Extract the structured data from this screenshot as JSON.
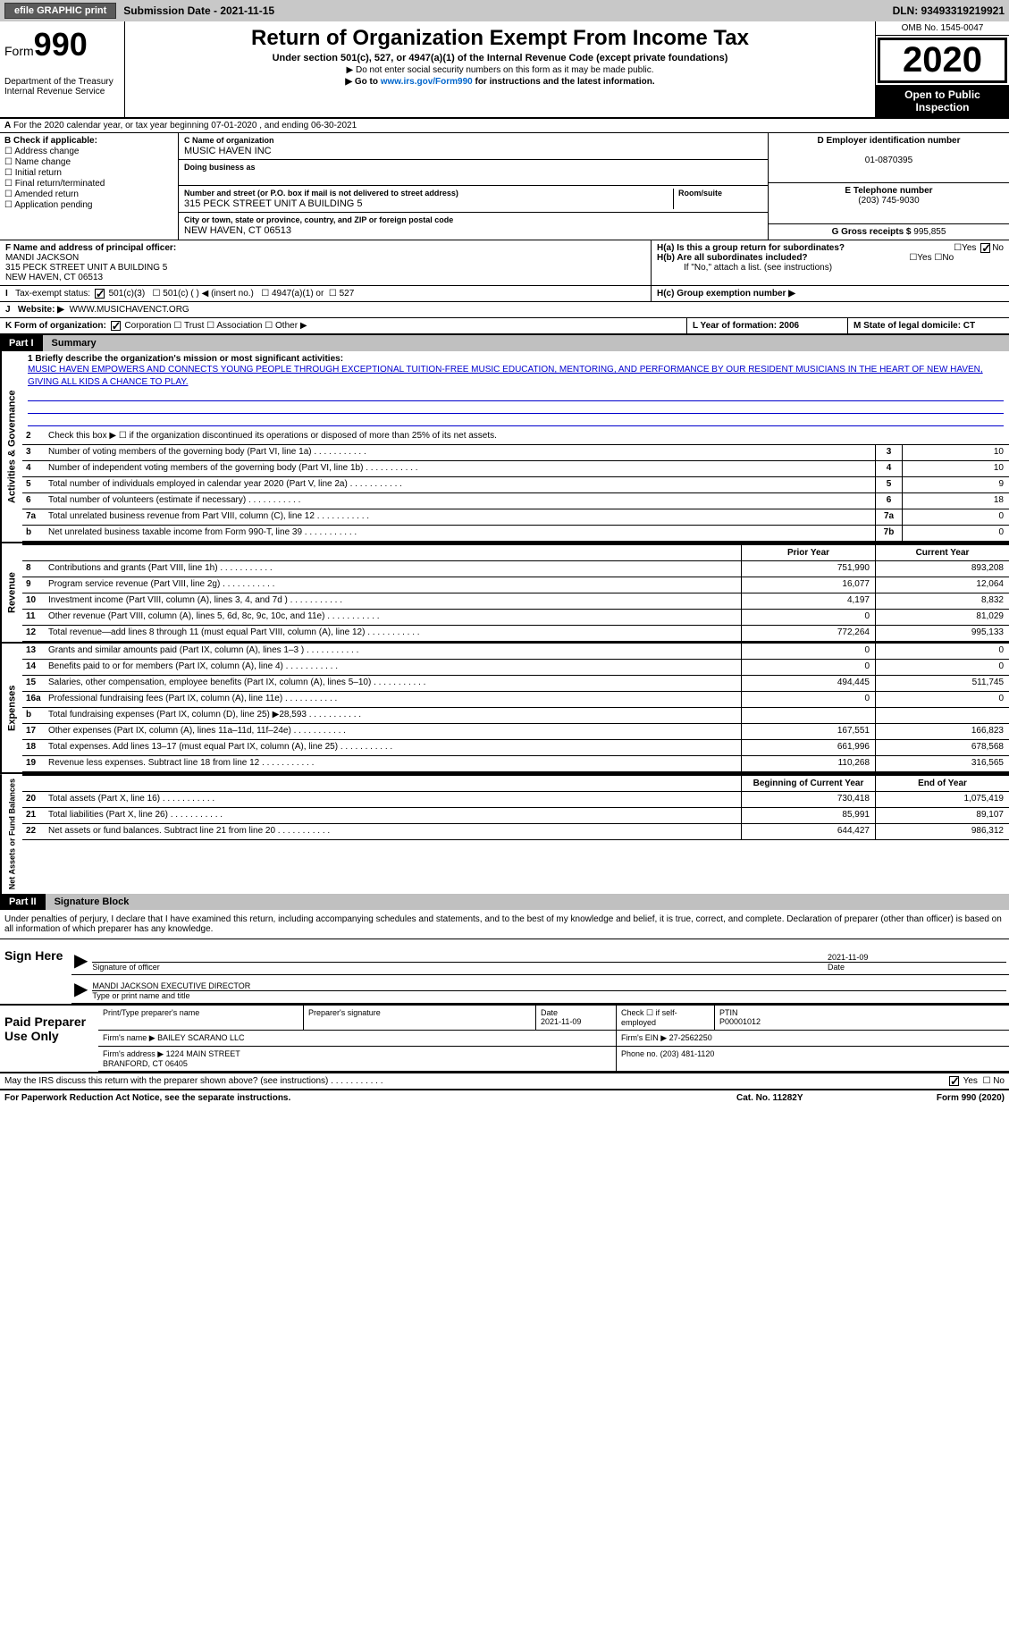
{
  "topbar": {
    "efile": "efile GRAPHIC print",
    "submission": "Submission Date - 2021-11-15",
    "dln": "DLN: 93493319219921"
  },
  "header": {
    "form": "Form",
    "num": "990",
    "dept": "Department of the Treasury\nInternal Revenue Service",
    "title": "Return of Organization Exempt From Income Tax",
    "sub1": "Under section 501(c), 527, or 4947(a)(1) of the Internal Revenue Code (except private foundations)",
    "sub2a": "▶ Do not enter social security numbers on this form as it may be made public.",
    "sub2b": "▶ Go to ",
    "link": "www.irs.gov/Form990",
    "sub2c": " for instructions and the latest information.",
    "omb": "OMB No. 1545-0047",
    "year": "2020",
    "inspect": "Open to Public Inspection"
  },
  "row_a": "For the 2020 calendar year, or tax year beginning 07-01-2020    , and ending 06-30-2021",
  "box_b": {
    "title": "B Check if applicable:",
    "items": [
      "Address change",
      "Name change",
      "Initial return",
      "Final return/terminated",
      "Amended return",
      "Application pending"
    ]
  },
  "box_c": {
    "name_label": "C Name of organization",
    "name": "MUSIC HAVEN INC",
    "dba_label": "Doing business as",
    "dba": "",
    "addr_label": "Number and street (or P.O. box if mail is not delivered to street address)",
    "addr": "315 PECK STREET UNIT A BUILDING 5",
    "room_label": "Room/suite",
    "city_label": "City or town, state or province, country, and ZIP or foreign postal code",
    "city": "NEW HAVEN, CT  06513"
  },
  "box_d": {
    "ein_label": "D Employer identification number",
    "ein": "01-0870395",
    "phone_label": "E Telephone number",
    "phone": "(203) 745-9030",
    "gross_label": "G Gross receipts $",
    "gross": "995,855"
  },
  "row_f": {
    "label": "F Name and address of principal officer:",
    "name": "MANDI JACKSON",
    "addr": "315 PECK STREET UNIT A BUILDING 5\nNEW HAVEN, CT  06513",
    "ha": "H(a)  Is this a group return for subordinates?",
    "hb": "H(b)  Are all subordinates included?",
    "hb_note": "If \"No,\" attach a list. (see instructions)",
    "hc": "H(c)  Group exemption number ▶"
  },
  "row_i": "Tax-exempt status:",
  "row_i_opts": [
    "501(c)(3)",
    "501(c) (  ) ◀ (insert no.)",
    "4947(a)(1) or",
    "527"
  ],
  "row_j": {
    "label": "Website: ▶",
    "val": "WWW.MUSICHAVENCT.ORG"
  },
  "row_k": {
    "label": "K Form of organization:",
    "opts": [
      "Corporation",
      "Trust",
      "Association",
      "Other ▶"
    ]
  },
  "row_l": "L Year of formation: 2006",
  "row_m": "M State of legal domicile: CT",
  "part1": {
    "num": "Part I",
    "title": "Summary"
  },
  "mission": {
    "q": "1   Briefly describe the organization's mission or most significant activities:",
    "txt": "MUSIC HAVEN EMPOWERS AND CONNECTS YOUNG PEOPLE THROUGH EXCEPTIONAL TUITION-FREE MUSIC EDUCATION, MENTORING, AND PERFORMANCE BY OUR RESIDENT MUSICIANS IN THE HEART OF NEW HAVEN, GIVING ALL KIDS A CHANCE TO PLAY."
  },
  "line2": "Check this box ▶ ☐  if the organization discontinued its operations or disposed of more than 25% of its net assets.",
  "gov_lines": [
    {
      "n": "3",
      "d": "Number of voting members of the governing body (Part VI, line 1a)",
      "b": "3",
      "v": "10"
    },
    {
      "n": "4",
      "d": "Number of independent voting members of the governing body (Part VI, line 1b)",
      "b": "4",
      "v": "10"
    },
    {
      "n": "5",
      "d": "Total number of individuals employed in calendar year 2020 (Part V, line 2a)",
      "b": "5",
      "v": "9"
    },
    {
      "n": "6",
      "d": "Total number of volunteers (estimate if necessary)",
      "b": "6",
      "v": "18"
    },
    {
      "n": "7a",
      "d": "Total unrelated business revenue from Part VIII, column (C), line 12",
      "b": "7a",
      "v": "0"
    },
    {
      "n": "b",
      "d": "Net unrelated business taxable income from Form 990-T, line 39",
      "b": "7b",
      "v": "0"
    }
  ],
  "col_hdr": {
    "py": "Prior Year",
    "cy": "Current Year"
  },
  "rev_lines": [
    {
      "n": "8",
      "d": "Contributions and grants (Part VIII, line 1h)",
      "py": "751,990",
      "cy": "893,208"
    },
    {
      "n": "9",
      "d": "Program service revenue (Part VIII, line 2g)",
      "py": "16,077",
      "cy": "12,064"
    },
    {
      "n": "10",
      "d": "Investment income (Part VIII, column (A), lines 3, 4, and 7d )",
      "py": "4,197",
      "cy": "8,832"
    },
    {
      "n": "11",
      "d": "Other revenue (Part VIII, column (A), lines 5, 6d, 8c, 9c, 10c, and 11e)",
      "py": "0",
      "cy": "81,029"
    },
    {
      "n": "12",
      "d": "Total revenue—add lines 8 through 11 (must equal Part VIII, column (A), line 12)",
      "py": "772,264",
      "cy": "995,133"
    }
  ],
  "exp_lines": [
    {
      "n": "13",
      "d": "Grants and similar amounts paid (Part IX, column (A), lines 1–3 )",
      "py": "0",
      "cy": "0"
    },
    {
      "n": "14",
      "d": "Benefits paid to or for members (Part IX, column (A), line 4)",
      "py": "0",
      "cy": "0"
    },
    {
      "n": "15",
      "d": "Salaries, other compensation, employee benefits (Part IX, column (A), lines 5–10)",
      "py": "494,445",
      "cy": "511,745"
    },
    {
      "n": "16a",
      "d": "Professional fundraising fees (Part IX, column (A), line 11e)",
      "py": "0",
      "cy": "0"
    },
    {
      "n": "b",
      "d": "Total fundraising expenses (Part IX, column (D), line 25) ▶28,593",
      "py": "",
      "cy": "",
      "shade": true
    },
    {
      "n": "17",
      "d": "Other expenses (Part IX, column (A), lines 11a–11d, 11f–24e)",
      "py": "167,551",
      "cy": "166,823"
    },
    {
      "n": "18",
      "d": "Total expenses. Add lines 13–17 (must equal Part IX, column (A), line 25)",
      "py": "661,996",
      "cy": "678,568"
    },
    {
      "n": "19",
      "d": "Revenue less expenses. Subtract line 18 from line 12",
      "py": "110,268",
      "cy": "316,565"
    }
  ],
  "na_hdr": {
    "b": "Beginning of Current Year",
    "e": "End of Year"
  },
  "na_lines": [
    {
      "n": "20",
      "d": "Total assets (Part X, line 16)",
      "py": "730,418",
      "cy": "1,075,419"
    },
    {
      "n": "21",
      "d": "Total liabilities (Part X, line 26)",
      "py": "85,991",
      "cy": "89,107"
    },
    {
      "n": "22",
      "d": "Net assets or fund balances. Subtract line 21 from line 20",
      "py": "644,427",
      "cy": "986,312"
    }
  ],
  "part2": {
    "num": "Part II",
    "title": "Signature Block"
  },
  "sig_intro": "Under penalties of perjury, I declare that I have examined this return, including accompanying schedules and statements, and to the best of my knowledge and belief, it is true, correct, and complete. Declaration of preparer (other than officer) is based on all information of which preparer has any knowledge.",
  "sign": {
    "here": "Sign Here",
    "sig_label": "Signature of officer",
    "date_label": "Date",
    "date": "2021-11-09",
    "name": "MANDI JACKSON EXECUTIVE DIRECTOR",
    "name_label": "Type or print name and title"
  },
  "prep": {
    "title": "Paid Preparer Use Only",
    "h1": "Print/Type preparer's name",
    "h2": "Preparer's signature",
    "h3": "Date",
    "date": "2021-11-09",
    "h4": "Check ☐ if self-employed",
    "h5": "PTIN",
    "ptin": "P00001012",
    "firm_label": "Firm's name    ▶",
    "firm": "BAILEY SCARANO LLC",
    "ein_label": "Firm's EIN ▶",
    "ein": "27-2562250",
    "addr_label": "Firm's address ▶",
    "addr": "1224 MAIN STREET\nBRANFORD, CT  06405",
    "phone_label": "Phone no.",
    "phone": "(203) 481-1120"
  },
  "discuss": "May the IRS discuss this return with the preparer shown above? (see instructions)",
  "footer": {
    "l": "For Paperwork Reduction Act Notice, see the separate instructions.",
    "m": "Cat. No. 11282Y",
    "r": "Form 990 (2020)"
  },
  "side_labels": {
    "gov": "Activities & Governance",
    "rev": "Revenue",
    "exp": "Expenses",
    "na": "Net Assets or Fund Balances"
  }
}
